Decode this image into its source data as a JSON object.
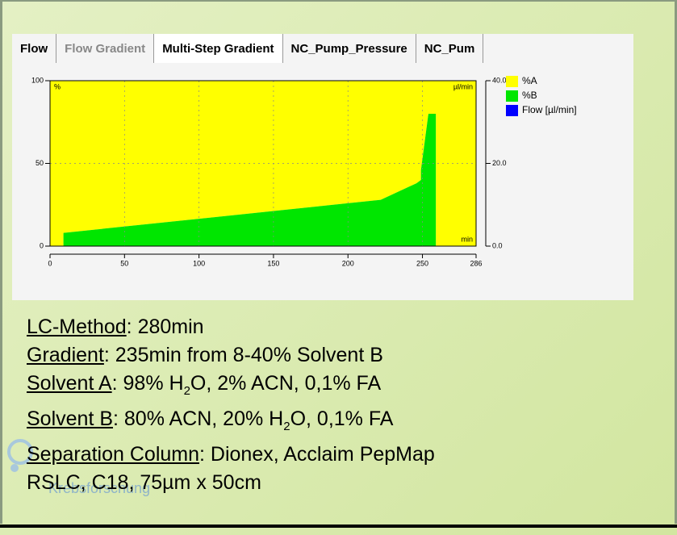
{
  "tabs": [
    "Flow",
    "Flow Gradient",
    "Multi-Step Gradient",
    "NC_Pump_Pressure",
    "NC_Pum"
  ],
  "chart_data": {
    "type": "area",
    "y_unit": "%",
    "y2_unit": "µl/min",
    "x_unit": "min",
    "x": [
      0,
      9,
      9,
      222,
      246,
      249,
      249,
      254,
      259,
      259,
      286
    ],
    "series": [
      {
        "name": "%A",
        "color": "#ffff00",
        "values": [
          100,
          100,
          92,
          72,
          62,
          60,
          54,
          20,
          20,
          100,
          100
        ]
      },
      {
        "name": "%B",
        "color": "#00e600",
        "values": [
          0,
          0,
          8,
          28,
          38,
          40,
          46,
          80,
          80,
          0,
          0
        ]
      },
      {
        "name": "Flow [µl/min]",
        "color": "#0000ff",
        "axis": "y2"
      }
    ],
    "xlim": [
      0,
      286
    ],
    "xticks": [
      0,
      50,
      100,
      150,
      200,
      250,
      286
    ],
    "ylim": [
      0,
      100
    ],
    "yticks": [
      0,
      50,
      100
    ],
    "y2lim": [
      0,
      40
    ],
    "y2ticks": [
      {
        "value": 0,
        "label": "0.0"
      },
      {
        "value": 20,
        "label": "20.0"
      },
      {
        "value": 40,
        "label": "40.0"
      }
    ],
    "grid": true
  },
  "notes": [
    {
      "label": "LC-Method",
      "text": [
        ": 280min"
      ]
    },
    {
      "label": "Gradient",
      "text": [
        ": 235min from 8-40% Solvent B"
      ]
    },
    {
      "label": "Solvent A",
      "text": [
        ": 98% H",
        {
          "sub": "2"
        },
        "O, 2% ACN, 0,1% FA"
      ]
    },
    {
      "label": "Solvent B",
      "text": [
        ": 80% ACN, 20% H",
        {
          "sub": "2"
        },
        "O, 0,1% FA"
      ]
    },
    {
      "label": "Separation Column",
      "text": [
        ": Dionex, Acclaim PepMap"
      ]
    },
    {
      "text": [
        "RSLC, C18, 75µm x 50cm"
      ]
    }
  ],
  "logo": "Krebsforschung"
}
